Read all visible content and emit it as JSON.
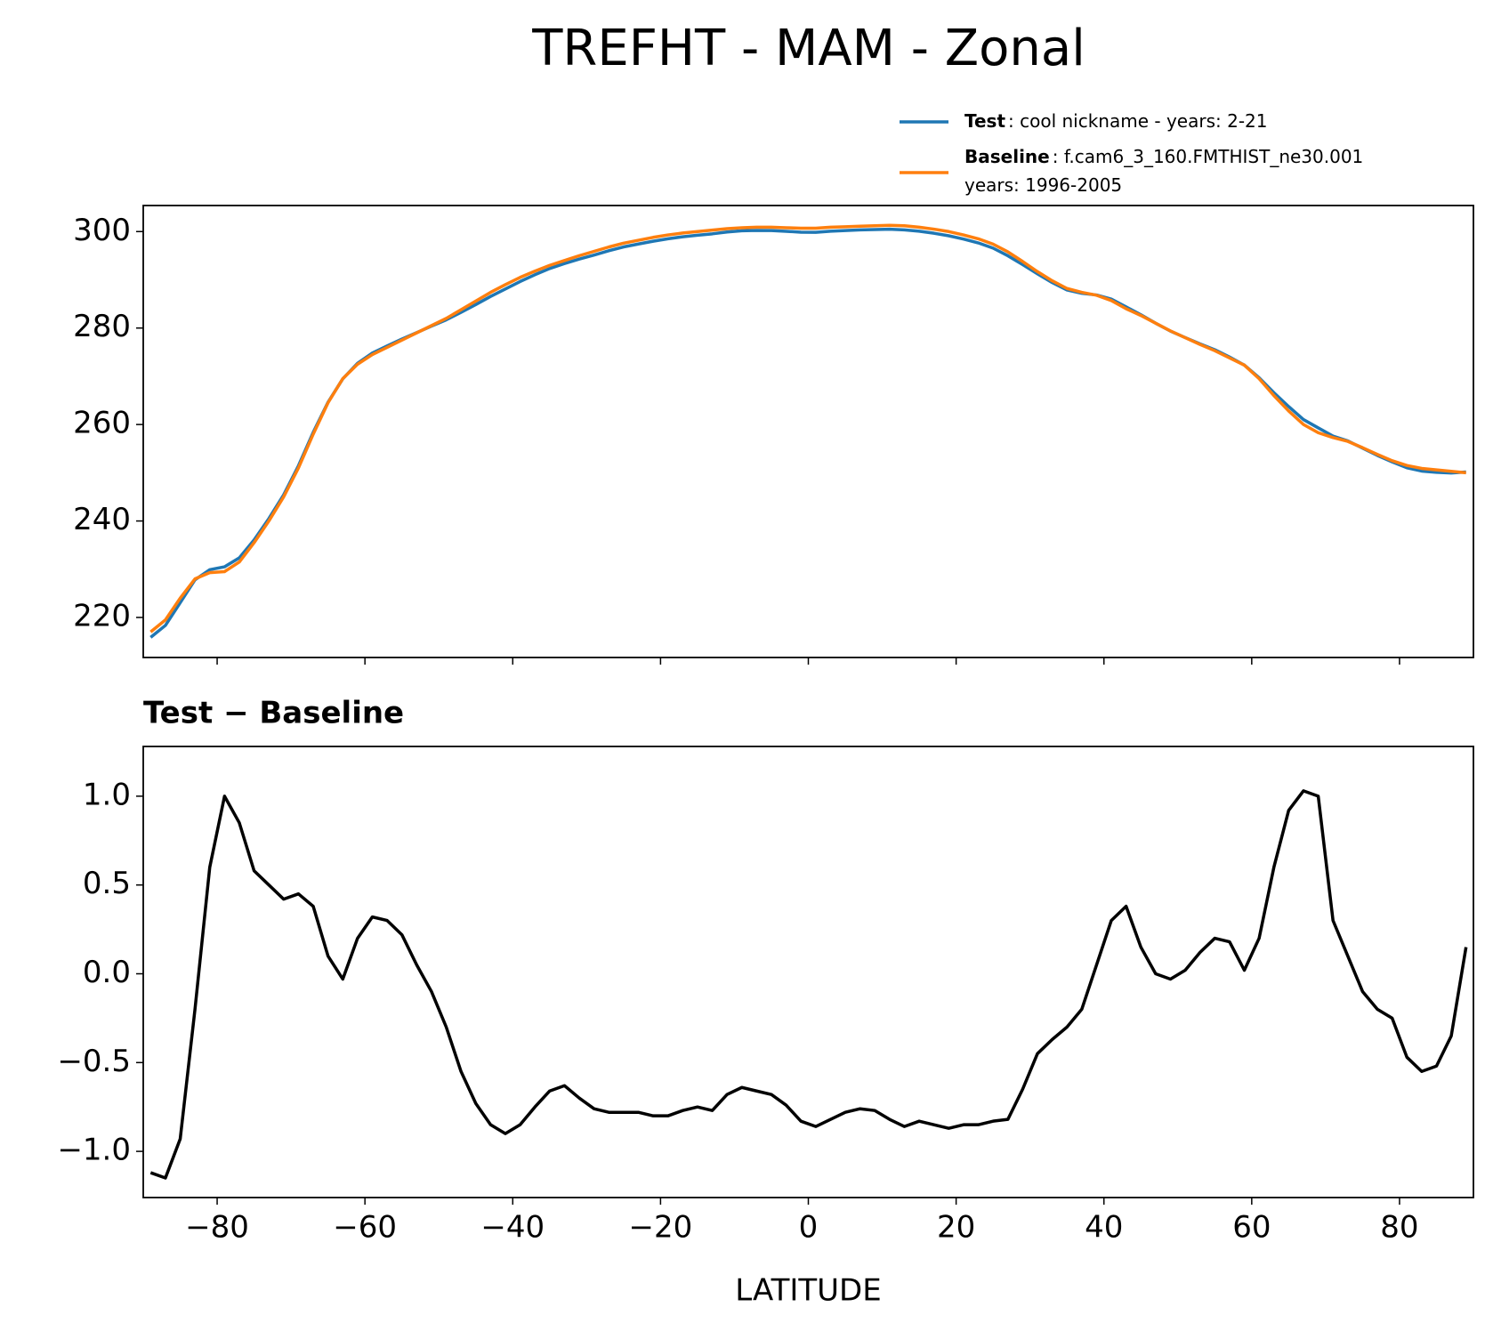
{
  "title": "TREFHT - MAM - Zonal",
  "chart_data": [
    {
      "type": "line",
      "x": [
        -89,
        -87,
        -85,
        -83,
        -81,
        -79,
        -77,
        -75,
        -73,
        -71,
        -69,
        -67,
        -65,
        -63,
        -61,
        -59,
        -57,
        -55,
        -53,
        -51,
        -49,
        -47,
        -45,
        -43,
        -41,
        -39,
        -37,
        -35,
        -33,
        -31,
        -29,
        -27,
        -25,
        -23,
        -21,
        -19,
        -17,
        -15,
        -13,
        -11,
        -9,
        -7,
        -5,
        -3,
        -1,
        1,
        3,
        5,
        7,
        9,
        11,
        13,
        15,
        17,
        19,
        21,
        23,
        25,
        27,
        29,
        31,
        33,
        35,
        37,
        39,
        41,
        43,
        45,
        47,
        49,
        51,
        53,
        55,
        57,
        59,
        61,
        63,
        65,
        67,
        69,
        71,
        73,
        75,
        77,
        79,
        81,
        83,
        85,
        87,
        89
      ],
      "series": [
        {
          "name": "Test",
          "description": [
            ": cool nickname - years: 2-21"
          ],
          "color": "#1f77b4",
          "values": [
            215.88,
            218.35,
            223.07,
            227.8,
            229.9,
            230.5,
            232.35,
            236.08,
            240.5,
            245.42,
            251.45,
            258.38,
            264.6,
            269.47,
            272.7,
            274.82,
            276.3,
            277.72,
            279.05,
            280.4,
            281.7,
            283.25,
            284.87,
            286.55,
            288.1,
            289.65,
            291.05,
            292.34,
            293.37,
            294.3,
            295.14,
            296.02,
            296.82,
            297.42,
            298.0,
            298.5,
            298.93,
            299.25,
            299.53,
            299.92,
            300.16,
            300.24,
            300.22,
            300.06,
            299.87,
            299.84,
            300.08,
            300.22,
            300.34,
            300.43,
            300.48,
            300.34,
            300.07,
            299.65,
            299.13,
            298.45,
            297.65,
            296.57,
            294.98,
            293.15,
            291.25,
            289.43,
            287.9,
            287.2,
            286.85,
            286.0,
            284.38,
            282.75,
            281,
            279.37,
            278.02,
            276.72,
            275.5,
            273.98,
            272.32,
            269.7,
            266.6,
            263.72,
            261.03,
            259.3,
            257.6,
            256.6,
            255.1,
            253.6,
            252.25,
            251.03,
            250.35,
            250.08,
            249.95,
            250.15
          ]
        },
        {
          "name": "Baseline",
          "description": [
            ": f.cam6_3_160.FMTHIST_ne30.001",
            "years: 1996-2005"
          ],
          "color": "#ff7f0e",
          "values": [
            217,
            219.5,
            224,
            228,
            229.3,
            229.5,
            231.5,
            235.5,
            240,
            245,
            251,
            258,
            264.5,
            269.5,
            272.5,
            274.5,
            276,
            277.5,
            279,
            280.5,
            282,
            283.8,
            285.6,
            287.4,
            289,
            290.5,
            291.8,
            293,
            294,
            295,
            295.9,
            296.8,
            297.6,
            298.2,
            298.8,
            299.3,
            299.7,
            300,
            300.3,
            300.6,
            300.8,
            300.9,
            300.9,
            300.8,
            300.7,
            300.7,
            300.9,
            301,
            301.1,
            301.2,
            301.3,
            301.2,
            300.9,
            300.5,
            300,
            299.3,
            298.5,
            297.4,
            295.8,
            293.8,
            291.7,
            289.8,
            288.2,
            287.4,
            286.8,
            285.7,
            284,
            282.6,
            281,
            279.4,
            278,
            276.6,
            275.3,
            273.8,
            272.3,
            269.5,
            266,
            262.8,
            260,
            258.3,
            257.3,
            256.5,
            255.2,
            253.8,
            252.5,
            251.5,
            250.9,
            250.6,
            250.3,
            250.0
          ]
        }
      ],
      "xlim": [
        -90,
        90
      ],
      "xticks": [
        -80,
        -60,
        -40,
        -20,
        0,
        20,
        40,
        60,
        80
      ],
      "ylim": [
        211.7,
        305.4
      ],
      "yticks": [
        220,
        240,
        260,
        280,
        300
      ]
    },
    {
      "type": "line",
      "title": "Test − Baseline",
      "x_label": "LATITUDE",
      "x": [
        -89,
        -87,
        -85,
        -83,
        -81,
        -79,
        -77,
        -75,
        -73,
        -71,
        -69,
        -67,
        -65,
        -63,
        -61,
        -59,
        -57,
        -55,
        -53,
        -51,
        -49,
        -47,
        -45,
        -43,
        -41,
        -39,
        -37,
        -35,
        -33,
        -31,
        -29,
        -27,
        -25,
        -23,
        -21,
        -19,
        -17,
        -15,
        -13,
        -11,
        -9,
        -7,
        -5,
        -3,
        -1,
        1,
        3,
        5,
        7,
        9,
        11,
        13,
        15,
        17,
        19,
        21,
        23,
        25,
        27,
        29,
        31,
        33,
        35,
        37,
        39,
        41,
        43,
        45,
        47,
        49,
        51,
        53,
        55,
        57,
        59,
        61,
        63,
        65,
        67,
        69,
        71,
        73,
        75,
        77,
        79,
        81,
        83,
        85,
        87,
        89
      ],
      "series": [
        {
          "color": "#000000",
          "values": [
            -1.12,
            -1.15,
            -0.93,
            -0.2,
            0.6,
            1.0,
            0.85,
            0.58,
            0.5,
            0.42,
            0.45,
            0.38,
            0.1,
            -0.03,
            0.2,
            0.32,
            0.3,
            0.22,
            0.05,
            -0.1,
            -0.3,
            -0.55,
            -0.73,
            -0.85,
            -0.9,
            -0.85,
            -0.75,
            -0.66,
            -0.63,
            -0.7,
            -0.76,
            -0.78,
            -0.78,
            -0.78,
            -0.8,
            -0.8,
            -0.77,
            -0.75,
            -0.77,
            -0.68,
            -0.64,
            -0.66,
            -0.68,
            -0.74,
            -0.83,
            -0.86,
            -0.82,
            -0.78,
            -0.76,
            -0.77,
            -0.82,
            -0.86,
            -0.83,
            -0.85,
            -0.87,
            -0.85,
            -0.85,
            -0.83,
            -0.82,
            -0.65,
            -0.45,
            -0.37,
            -0.3,
            -0.2,
            0.05,
            0.3,
            0.38,
            0.15,
            0.0,
            -0.03,
            0.02,
            0.12,
            0.2,
            0.18,
            0.02,
            0.2,
            0.6,
            0.92,
            1.03,
            1.0,
            0.3,
            0.1,
            -0.1,
            -0.2,
            -0.25,
            -0.47,
            -0.55,
            -0.52,
            -0.35,
            0.15
          ]
        }
      ],
      "xlim": [
        -90,
        90
      ],
      "xticks": [
        {
          "value": -80,
          "label": "−80"
        },
        {
          "value": -60,
          "label": "−60"
        },
        {
          "value": -40,
          "label": "−40"
        },
        {
          "value": -20,
          "label": "−20"
        },
        0,
        20,
        40,
        60,
        80
      ],
      "ylim": [
        -1.26,
        1.28
      ],
      "yticks": [
        {
          "value": -1,
          "label": "−1.0"
        },
        {
          "value": -0.5,
          "label": "−0.5"
        },
        {
          "value": 0,
          "label": "0.0"
        },
        0.5,
        {
          "value": 1,
          "label": "1.0"
        }
      ]
    }
  ]
}
